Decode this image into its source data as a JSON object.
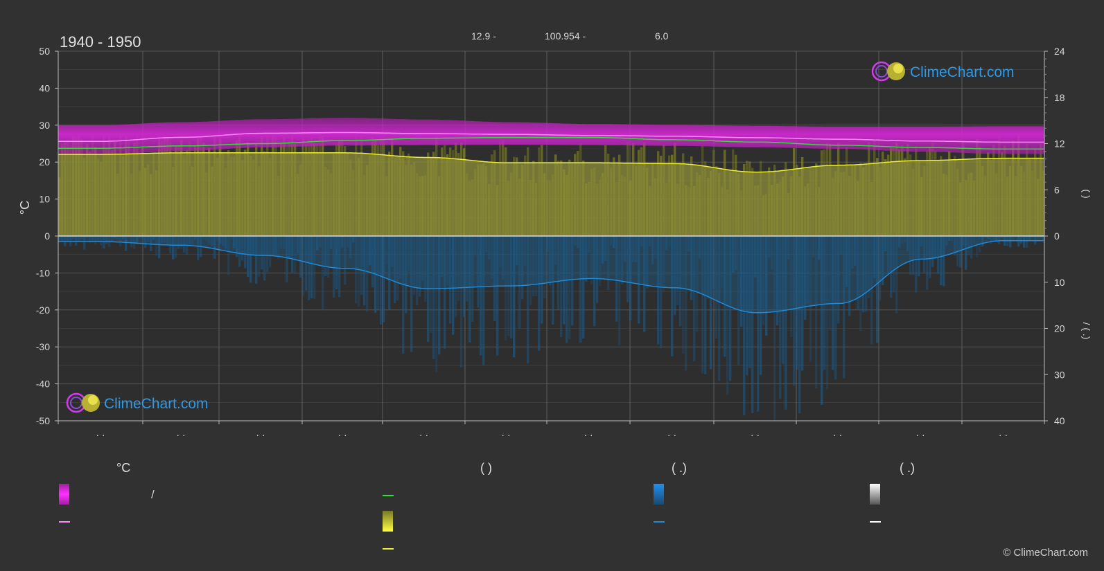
{
  "header": {
    "period": "1940 - 1950",
    "coord_lat": "12.9 -",
    "coord_lon": "100.954 -",
    "elevation": "6.0"
  },
  "axes": {
    "left_unit": "°C",
    "left_ticks": [
      "50",
      "40",
      "30",
      "20",
      "10",
      "0",
      "-10",
      "-20",
      "-30",
      "-40",
      "-50"
    ],
    "right_upper_ticks": [
      "24",
      "18",
      "12",
      "6",
      "0"
    ],
    "right_lower_ticks": [
      "10",
      "20",
      "30",
      "40"
    ],
    "right_upper_unit": "(          )",
    "right_lower_unit": "/ (   .)",
    "month_labels": [
      "· ·",
      "· ·",
      "· ·",
      "· ·",
      "· ·",
      "· ·",
      "· ·",
      "· ·",
      "· ·",
      "· ·",
      "· ·",
      "· ·"
    ]
  },
  "legend": {
    "temperature_head": "°C",
    "sunshine_head": "(          )",
    "rain_head": "(   .)",
    "snow_head": "(   .)",
    "temp_range_label": "/",
    "temp_mean_label": "",
    "daylight_label": "",
    "sunshine_label": "",
    "sunshine_mean_label": "",
    "rain_label": "",
    "rain_mean_label": "",
    "snow_label": "",
    "snow_mean_label": ""
  },
  "logo": {
    "text": "ClimeChart.com"
  },
  "copyright": "© ClimeChart.com",
  "colors": {
    "background": "#313131",
    "temp_band": "#e020e0",
    "temp_mean": "#ff8cff",
    "daylight": "#33dd33",
    "sunshine": "#eeee33",
    "sunshine_fill": "#8e8e3a",
    "rain": "#1e8ad8",
    "rain_fill": "#1f5a86",
    "snow": "#ffffff",
    "grid": "#5a5a5a",
    "logo_blue": "#2f9ae6"
  },
  "chart_data": {
    "type": "area",
    "x": [
      0,
      1,
      2,
      3,
      4,
      5,
      6,
      7,
      8,
      9,
      10,
      11
    ],
    "x_tick_labels": [
      "· ·",
      "· ·",
      "· ·",
      "· ·",
      "· ·",
      "· ·",
      "· ·",
      "· ·",
      "· ·",
      "· ·",
      "· ·",
      "· ·"
    ],
    "y_left_range": [
      -50,
      50
    ],
    "y_right_sun_range": [
      0,
      24
    ],
    "y_right_rain_range": [
      0,
      40
    ],
    "grid": true,
    "series": [
      {
        "key": "temp_max",
        "axis": "celsius",
        "values": [
          30.0,
          30.8,
          31.6,
          32.0,
          31.5,
          30.8,
          30.3,
          30.1,
          29.8,
          29.6,
          29.6,
          29.7
        ]
      },
      {
        "key": "temp_mean",
        "axis": "celsius",
        "values": [
          25.6,
          26.7,
          27.8,
          28.0,
          27.7,
          27.5,
          27.2,
          27.0,
          26.6,
          26.2,
          25.7,
          25.4
        ]
      },
      {
        "key": "temp_min",
        "axis": "celsius",
        "values": [
          22.0,
          23.0,
          24.0,
          24.5,
          24.6,
          24.7,
          24.6,
          24.4,
          24.0,
          23.6,
          22.8,
          22.2
        ]
      },
      {
        "key": "daylight",
        "axis": "hours",
        "values": [
          11.4,
          11.7,
          12.0,
          12.4,
          12.7,
          12.8,
          12.8,
          12.5,
          12.2,
          11.8,
          11.5,
          11.3
        ]
      },
      {
        "key": "sunshine",
        "axis": "hours",
        "values": [
          10.6,
          10.8,
          10.8,
          10.8,
          10.2,
          9.5,
          9.5,
          9.4,
          8.3,
          9.2,
          9.8,
          10.1
        ]
      },
      {
        "key": "precipitation",
        "axis": "mm_per_day",
        "values": [
          1.2,
          2.0,
          4.2,
          7.0,
          11.4,
          10.8,
          9.2,
          11.2,
          16.6,
          14.6,
          5.0,
          1.0
        ]
      },
      {
        "key": "snow",
        "axis": "mm_per_day",
        "values": [
          0,
          0,
          0,
          0,
          0,
          0,
          0,
          0,
          0,
          0,
          0,
          0
        ]
      }
    ]
  }
}
